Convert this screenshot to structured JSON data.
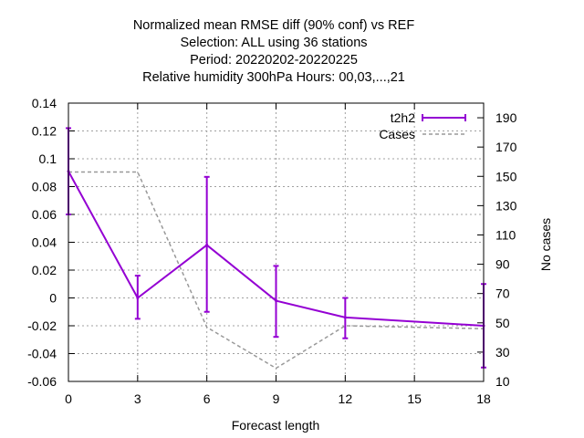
{
  "chart_data": {
    "type": "line",
    "title_lines": [
      "Normalized mean RMSE diff (90% conf) vs REF",
      "Selection: ALL using    36 stations",
      "Period: 20220202-20220225",
      "Relative humidity 300hPa   Hours:  00,03,...,21"
    ],
    "xlabel": "Forecast length",
    "y2label": "No cases",
    "x_ticks": [
      0,
      3,
      6,
      9,
      12,
      15,
      18
    ],
    "y_ticks": [
      -0.06,
      -0.04,
      -0.02,
      0,
      0.02,
      0.04,
      0.06,
      0.08,
      0.1,
      0.12,
      0.14
    ],
    "y_tick_labels": [
      "-0.06",
      "-0.04",
      "-0.02",
      "0",
      "0.02",
      "0.04",
      "0.06",
      "0.08",
      "0.1",
      "0.12",
      "0.14"
    ],
    "y2_ticks": [
      10,
      30,
      50,
      70,
      90,
      110,
      130,
      150,
      170,
      190
    ],
    "xlim": [
      0,
      18
    ],
    "ylim": [
      -0.06,
      0.14
    ],
    "y2lim": [
      10,
      200
    ],
    "grid": true,
    "legend_position": "top-right",
    "series": [
      {
        "name": "t2h2",
        "color": "#9400d3",
        "style": "line-errorbars",
        "x": [
          0,
          3,
          6,
          9,
          12,
          18
        ],
        "y": [
          0.091,
          0.0,
          0.038,
          -0.002,
          -0.014,
          -0.02
        ],
        "err_low": [
          0.06,
          -0.015,
          -0.01,
          -0.028,
          -0.029,
          -0.05
        ],
        "err_high": [
          0.122,
          0.016,
          0.087,
          0.023,
          0.0,
          0.01
        ]
      },
      {
        "name": "Cases",
        "color": "#999999",
        "style": "dashed",
        "axis": "y2",
        "x": [
          0,
          3,
          6,
          9,
          12,
          18
        ],
        "y": [
          153,
          153,
          47,
          19,
          48,
          46
        ]
      }
    ]
  }
}
